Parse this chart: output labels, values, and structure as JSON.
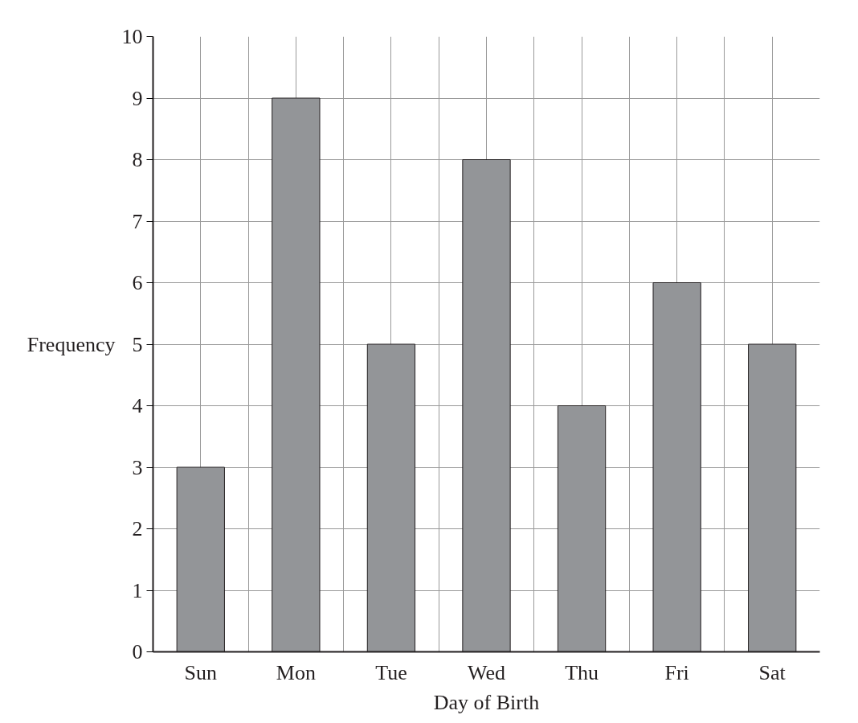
{
  "chart_data": {
    "type": "bar",
    "xlabel": "Day of Birth",
    "ylabel": "Frequency",
    "categories": [
      "Sun",
      "Mon",
      "Tue",
      "Wed",
      "Thu",
      "Fri",
      "Sat"
    ],
    "values": [
      3,
      9,
      5,
      8,
      4,
      6,
      5
    ],
    "color": "#939598",
    "ylim": [
      0,
      10
    ],
    "yticks": [
      0,
      1,
      2,
      3,
      4,
      5,
      6,
      7,
      8,
      9,
      10
    ],
    "grid": true
  }
}
